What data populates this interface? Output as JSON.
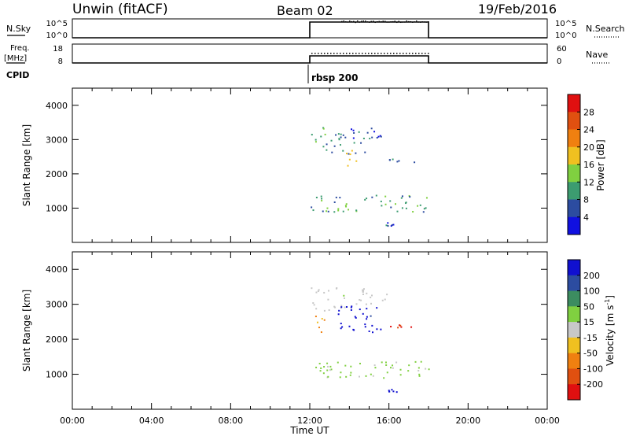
{
  "header": {
    "station": "Unwin (fitACF)",
    "beam": "Beam 02",
    "date": "19/Feb/2016"
  },
  "nsky_panel": {
    "left_label": "N.Sky",
    "left_ticks": [
      "10^5",
      "10^0"
    ],
    "right_ticks": [
      "10^5",
      "10^0"
    ],
    "right_label": "N.Search"
  },
  "freq_panel": {
    "left_label_1": "Freq.",
    "left_label_2": "[MHz]",
    "left_ticks": [
      "18",
      "8"
    ],
    "right_ticks": [
      "60",
      "0"
    ],
    "right_label": "Nave"
  },
  "cpid": {
    "label": "CPID",
    "program": "rbsp 200"
  },
  "time_axis": {
    "label": "Time UT",
    "ticks": [
      "00:00",
      "04:00",
      "08:00",
      "12:00",
      "16:00",
      "20:00",
      "00:00"
    ]
  },
  "power_colorbar": {
    "label": "Power [dB]",
    "ticks": [
      "28",
      "24",
      "20",
      "16",
      "12",
      "8",
      "4"
    ],
    "colors": [
      "#e01010",
      "#e05010",
      "#f08010",
      "#f0c020",
      "#80d040",
      "#3c9c70",
      "#2c4ca0",
      "#1010e0"
    ]
  },
  "velocity_colorbar": {
    "label": "Velocity [m s",
    "label_sup": "-1",
    "label_end": "]",
    "ticks": [
      "200",
      "100",
      "50",
      "15",
      "-15",
      "-50",
      "-100",
      "-200"
    ],
    "colors": [
      "#1010d0",
      "#2c4ca0",
      "#3c8c60",
      "#80d040",
      "#c8c8c8",
      "#f0c020",
      "#f08010",
      "#e05010",
      "#e01010"
    ]
  },
  "chart_data": [
    {
      "type": "line",
      "title": "N.Sky / N.Search",
      "x_range_hours": [
        0,
        24
      ],
      "operation_window_hours": [
        12.0,
        18.0
      ],
      "y_scale": "log",
      "ylim": [
        "10^0",
        "10^5"
      ]
    },
    {
      "type": "line",
      "title": "Freq. / Nave",
      "x_range_hours": [
        0,
        24
      ],
      "operation_window_hours": [
        12.0,
        18.0
      ],
      "ylim_left": [
        8,
        18
      ],
      "ylim_right": [
        0,
        60
      ]
    },
    {
      "type": "heatmap",
      "title": "Power [dB]",
      "xlabel": "",
      "ylabel": "Slant Range [km]",
      "xlim_hours": [
        0,
        24
      ],
      "ylim": [
        0,
        4500
      ],
      "yticks": [
        1000,
        2000,
        3000,
        4000
      ],
      "clim": [
        0,
        32
      ],
      "scatter_regions": [
        {
          "t_start": 12.0,
          "t_end": 18.0,
          "r_min": 900,
          "r_max": 1400,
          "value": 10
        },
        {
          "t_start": 12.0,
          "t_end": 12.8,
          "r_min": 2800,
          "r_max": 3400,
          "value": 12
        },
        {
          "t_start": 12.8,
          "t_end": 14.8,
          "r_min": 2600,
          "r_max": 3200,
          "value": 8
        },
        {
          "t_start": 14.0,
          "t_end": 15.8,
          "r_min": 3000,
          "r_max": 3500,
          "value": 6
        },
        {
          "t_start": 13.8,
          "t_end": 14.4,
          "r_min": 2200,
          "r_max": 2700,
          "value": 16
        },
        {
          "t_start": 16.0,
          "t_end": 17.5,
          "r_min": 2350,
          "r_max": 2450,
          "value": 6
        },
        {
          "t_start": 15.8,
          "t_end": 16.4,
          "r_min": 500,
          "r_max": 600,
          "value": 6
        }
      ]
    },
    {
      "type": "heatmap",
      "title": "Velocity [m s-1]",
      "xlabel": "Time UT",
      "ylabel": "Slant Range [km]",
      "xlim_hours": [
        0,
        24
      ],
      "ylim": [
        0,
        4500
      ],
      "yticks": [
        1000,
        2000,
        3000,
        4000
      ],
      "clim": [
        -250,
        250
      ],
      "scatter_regions": [
        {
          "t_start": 12.0,
          "t_end": 18.0,
          "r_min": 900,
          "r_max": 1400,
          "value": 40
        },
        {
          "t_start": 12.0,
          "t_end": 13.8,
          "r_min": 2800,
          "r_max": 3500,
          "value": 0
        },
        {
          "t_start": 12.2,
          "t_end": 12.8,
          "r_min": 2200,
          "r_max": 2700,
          "value": -100
        },
        {
          "t_start": 13.4,
          "t_end": 15.6,
          "r_min": 2200,
          "r_max": 3000,
          "value": 220
        },
        {
          "t_start": 14.0,
          "t_end": 16.0,
          "r_min": 3000,
          "r_max": 3500,
          "value": 0
        },
        {
          "t_start": 16.0,
          "t_end": 17.5,
          "r_min": 2350,
          "r_max": 2450,
          "value": -200
        },
        {
          "t_start": 15.8,
          "t_end": 16.4,
          "r_min": 500,
          "r_max": 600,
          "value": 220
        }
      ]
    }
  ]
}
